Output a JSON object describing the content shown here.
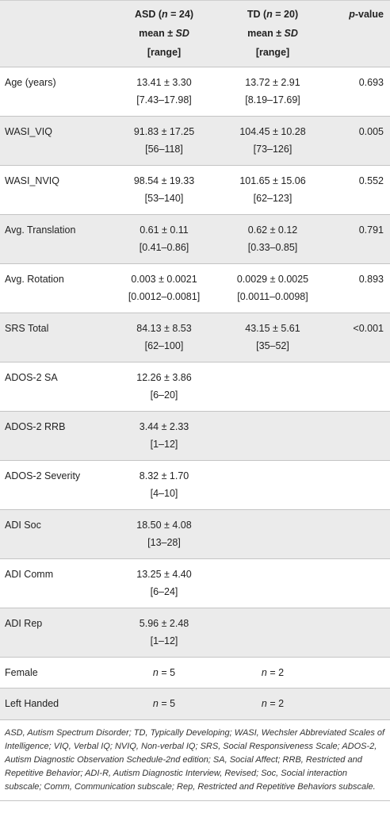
{
  "header": {
    "col0": "",
    "asd": {
      "name": "ASD (",
      "n_sym": "n",
      "n_val": " = 24)",
      "line2a": "mean ± ",
      "line2b": "SD",
      "line3": "[range]"
    },
    "td": {
      "name": "TD (",
      "n_sym": "n",
      "n_val": " = 20)",
      "line2a": "mean ± ",
      "line2b": "SD",
      "line3": "[range]"
    },
    "p": {
      "sym": "p",
      "rest": "-value"
    }
  },
  "rows": [
    {
      "label": "Age (years)",
      "asd_mean": "13.41 ± 3.30",
      "asd_range": "[7.43–17.98]",
      "td_mean": "13.72 ± 2.91",
      "td_range": "[8.19–17.69]",
      "p": "0.693"
    },
    {
      "label": "WASI_VIQ",
      "asd_mean": "91.83 ± 17.25",
      "asd_range": "[56–118]",
      "td_mean": "104.45 ± 10.28",
      "td_range": "[73–126]",
      "p": "0.005"
    },
    {
      "label": "WASI_NVIQ",
      "asd_mean": "98.54 ± 19.33",
      "asd_range": "[53–140]",
      "td_mean": "101.65 ± 15.06",
      "td_range": "[62–123]",
      "p": "0.552"
    },
    {
      "label": "Avg. Translation",
      "asd_mean": "0.61 ± 0.11",
      "asd_range": "[0.41–0.86]",
      "td_mean": "0.62 ± 0.12",
      "td_range": "[0.33–0.85]",
      "p": "0.791"
    },
    {
      "label": "Avg. Rotation",
      "asd_mean": "0.003 ± 0.0021",
      "asd_range": "[0.0012–0.0081]",
      "td_mean": "0.0029 ± 0.0025",
      "td_range": "[0.0011–0.0098]",
      "p": "0.893"
    },
    {
      "label": "SRS Total",
      "asd_mean": "84.13 ± 8.53",
      "asd_range": "[62–100]",
      "td_mean": "43.15 ± 5.61",
      "td_range": "[35–52]",
      "p": "<0.001"
    },
    {
      "label": "ADOS-2 SA",
      "asd_mean": "12.26 ± 3.86",
      "asd_range": "[6–20]",
      "td_mean": "",
      "td_range": "",
      "p": ""
    },
    {
      "label": "ADOS-2 RRB",
      "asd_mean": "3.44 ± 2.33",
      "asd_range": "[1–12]",
      "td_mean": "",
      "td_range": "",
      "p": ""
    },
    {
      "label": "ADOS-2 Severity",
      "asd_mean": "8.32 ± 1.70",
      "asd_range": "[4–10]",
      "td_mean": "",
      "td_range": "",
      "p": ""
    },
    {
      "label": "ADI Soc",
      "asd_mean": "18.50 ± 4.08",
      "asd_range": "[13–28]",
      "td_mean": "",
      "td_range": "",
      "p": ""
    },
    {
      "label": "ADI Comm",
      "asd_mean": "13.25 ± 4.40",
      "asd_range": "[6–24]",
      "td_mean": "",
      "td_range": "",
      "p": ""
    },
    {
      "label": "ADI Rep",
      "asd_mean": "5.96 ± 2.48",
      "asd_range": "[1–12]",
      "td_mean": "",
      "td_range": "",
      "p": ""
    }
  ],
  "count_rows": [
    {
      "label": "Female",
      "asd_sym": "n",
      "asd_val": " = 5",
      "td_sym": "n",
      "td_val": " = 2"
    },
    {
      "label": "Left Handed",
      "asd_sym": "n",
      "asd_val": " = 5",
      "td_sym": "n",
      "td_val": " = 2"
    }
  ],
  "footnote": "ASD, Autism Spectrum Disorder; TD, Typically Developing; WASI, Wechsler Abbreviated Scales of Intelligence; VIQ, Verbal IQ; NVIQ, Non-verbal IQ; SRS, Social Responsiveness Scale; ADOS-2, Autism Diagnostic Observation Schedule-2nd edition; SA, Social Affect; RRB, Restricted and Repetitive Behavior; ADI-R, Autism Diagnostic Interview, Revised; Soc, Social interaction subscale; Comm, Communication subscale; Rep, Restricted and Repetitive Behaviors subscale.",
  "colors": {
    "band": "#ebebeb",
    "rule": "#c4c4c4",
    "text": "#222222"
  }
}
